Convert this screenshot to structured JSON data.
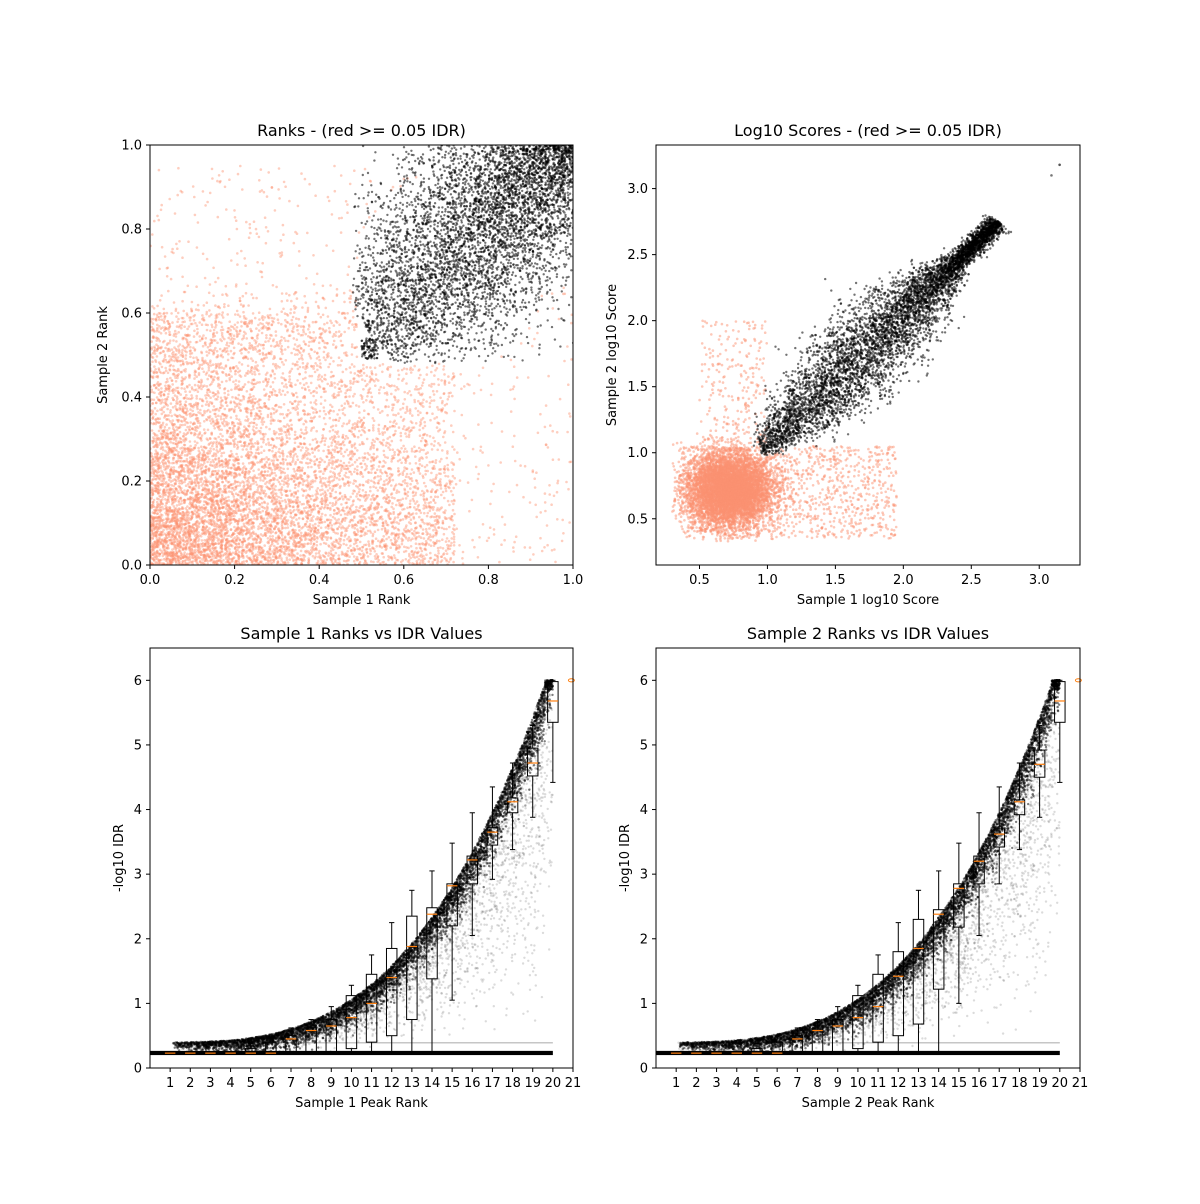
{
  "colors": {
    "fail": "#fc9272",
    "pass": "#000000",
    "median": "#ff7f0e"
  },
  "chart_data": [
    {
      "type": "scatter",
      "title": "Ranks - (red >= 0.05 IDR)",
      "xlabel": "Sample 1 Rank",
      "ylabel": "Sample 2 Rank",
      "xlim": [
        0,
        1
      ],
      "ylim": [
        0,
        1
      ],
      "xticks": [
        "0.0",
        "0.2",
        "0.4",
        "0.6",
        "0.8",
        "1.0"
      ],
      "yticks": [
        "0.0",
        "0.2",
        "0.4",
        "0.6",
        "0.8",
        "1.0"
      ],
      "series": [
        {
          "color": "#fc9272",
          "x": [
            0.05,
            0.12,
            0.2,
            0.28,
            0.35,
            0.42,
            0.5,
            0.58,
            0.65,
            0.72,
            0.3,
            0.2,
            0.1,
            0.45,
            0.6,
            0.15
          ],
          "y": [
            0.05,
            0.15,
            0.25,
            0.3,
            0.35,
            0.4,
            0.45,
            0.4,
            0.35,
            0.3,
            0.6,
            0.55,
            0.7,
            0.2,
            0.1,
            0.85
          ]
        },
        {
          "color": "#000000",
          "x": [
            0.5,
            0.55,
            0.6,
            0.65,
            0.7,
            0.75,
            0.8,
            0.85,
            0.9,
            0.95,
            1.0
          ],
          "y": [
            0.5,
            0.6,
            0.65,
            0.7,
            0.75,
            0.8,
            0.85,
            0.88,
            0.92,
            0.96,
            1.0
          ]
        }
      ]
    },
    {
      "type": "scatter",
      "title": "Log10 Scores - (red >= 0.05 IDR)",
      "xlabel": "Sample 1 log10 Score",
      "ylabel": "Sample 2 log10 Score",
      "xlim": [
        0.18,
        3.3
      ],
      "ylim": [
        0.15,
        3.33
      ],
      "xticks": [
        "0.5",
        "1.0",
        "1.5",
        "2.0",
        "2.5",
        "3.0"
      ],
      "yticks": [
        "0.5",
        "1.0",
        "1.5",
        "2.0",
        "2.5",
        "3.0"
      ],
      "series": [
        {
          "color": "#fc9272",
          "x": [
            0.35,
            0.5,
            0.6,
            0.7,
            0.8,
            0.9,
            1.0,
            1.2,
            0.55,
            0.65,
            0.75,
            1.4,
            2.3,
            0.8,
            0.45
          ],
          "y": [
            0.4,
            0.55,
            0.7,
            0.85,
            0.6,
            0.75,
            0.9,
            1.05,
            1.1,
            0.45,
            1.5,
            0.9,
            0.65,
            2.1,
            0.95
          ]
        },
        {
          "color": "#000000",
          "x": [
            0.95,
            1.1,
            1.3,
            1.5,
            1.7,
            1.9,
            2.1,
            2.3,
            2.5,
            2.7,
            3.15
          ],
          "y": [
            1.0,
            1.2,
            1.35,
            1.55,
            1.7,
            1.9,
            2.05,
            2.25,
            2.45,
            2.7,
            3.18
          ]
        }
      ]
    },
    {
      "type": "box",
      "title": "Sample 1 Ranks vs IDR Values",
      "xlabel": "Sample 1 Peak Rank",
      "ylabel": "-log10 IDR",
      "xlim": [
        0,
        21
      ],
      "ylim": [
        0,
        6.5
      ],
      "xticks": [
        "1",
        "2",
        "3",
        "4",
        "5",
        "6",
        "7",
        "8",
        "9",
        "10",
        "11",
        "12",
        "13",
        "14",
        "15",
        "16",
        "17",
        "18",
        "19",
        "20",
        "21"
      ],
      "yticks": [
        "0",
        "1",
        "2",
        "3",
        "4",
        "5",
        "6"
      ],
      "medians": [
        0.23,
        0.23,
        0.23,
        0.23,
        0.23,
        0.23,
        0.45,
        0.58,
        0.65,
        0.78,
        1.0,
        1.4,
        1.88,
        2.38,
        2.82,
        3.22,
        3.65,
        4.12,
        4.72,
        5.68,
        6.0
      ],
      "q1": [
        0.23,
        0.23,
        0.23,
        0.23,
        0.23,
        0.23,
        0.23,
        0.23,
        0.23,
        0.3,
        0.4,
        0.5,
        0.75,
        1.38,
        2.2,
        2.85,
        3.45,
        3.95,
        4.52,
        5.35,
        6.0
      ],
      "q3": [
        0.23,
        0.23,
        0.23,
        0.23,
        0.3,
        0.4,
        0.5,
        0.62,
        0.75,
        1.12,
        1.45,
        1.85,
        2.35,
        2.48,
        2.85,
        3.28,
        3.72,
        4.18,
        4.95,
        5.98,
        6.0
      ],
      "whisker_low": [
        0.23,
        0.23,
        0.23,
        0.23,
        0.23,
        0.23,
        0.23,
        0.23,
        0.23,
        0.23,
        0.23,
        0.23,
        0.23,
        0.23,
        1.05,
        2.05,
        2.92,
        3.38,
        3.88,
        4.42,
        6.0
      ],
      "whisker_high": [
        0.23,
        0.23,
        0.23,
        0.23,
        0.38,
        0.48,
        0.62,
        0.75,
        0.95,
        1.28,
        1.75,
        2.25,
        2.75,
        3.05,
        3.48,
        3.95,
        4.35,
        4.72,
        5.3,
        6.0,
        6.0
      ]
    },
    {
      "type": "box",
      "title": "Sample 2 Ranks vs IDR Values",
      "xlabel": "Sample 2 Peak Rank",
      "ylabel": "-log10 IDR",
      "xlim": [
        0,
        21
      ],
      "ylim": [
        0,
        6.5
      ],
      "xticks": [
        "1",
        "2",
        "3",
        "4",
        "5",
        "6",
        "7",
        "8",
        "9",
        "10",
        "11",
        "12",
        "13",
        "14",
        "15",
        "16",
        "17",
        "18",
        "19",
        "20",
        "21"
      ],
      "yticks": [
        "0",
        "1",
        "2",
        "3",
        "4",
        "5",
        "6"
      ],
      "medians": [
        0.23,
        0.23,
        0.23,
        0.23,
        0.23,
        0.23,
        0.45,
        0.58,
        0.65,
        0.78,
        0.95,
        1.42,
        1.85,
        2.38,
        2.78,
        3.2,
        3.62,
        4.12,
        4.7,
        5.68,
        6.0
      ],
      "q1": [
        0.23,
        0.23,
        0.23,
        0.23,
        0.23,
        0.23,
        0.23,
        0.23,
        0.23,
        0.3,
        0.4,
        0.5,
        0.68,
        1.22,
        2.18,
        2.85,
        3.42,
        3.92,
        4.5,
        5.35,
        6.0
      ],
      "q3": [
        0.23,
        0.23,
        0.23,
        0.23,
        0.3,
        0.4,
        0.5,
        0.62,
        0.75,
        1.12,
        1.45,
        1.8,
        2.3,
        2.45,
        2.85,
        3.28,
        3.7,
        4.15,
        4.92,
        5.98,
        6.0
      ],
      "whisker_low": [
        0.23,
        0.23,
        0.23,
        0.23,
        0.23,
        0.23,
        0.23,
        0.23,
        0.23,
        0.23,
        0.23,
        0.23,
        0.23,
        0.23,
        1.0,
        2.05,
        2.85,
        3.38,
        3.88,
        4.42,
        6.0
      ],
      "whisker_high": [
        0.23,
        0.23,
        0.23,
        0.23,
        0.38,
        0.48,
        0.62,
        0.75,
        0.95,
        1.28,
        1.75,
        2.25,
        2.75,
        3.05,
        3.48,
        3.95,
        4.35,
        4.72,
        5.3,
        6.0,
        6.0
      ]
    }
  ]
}
